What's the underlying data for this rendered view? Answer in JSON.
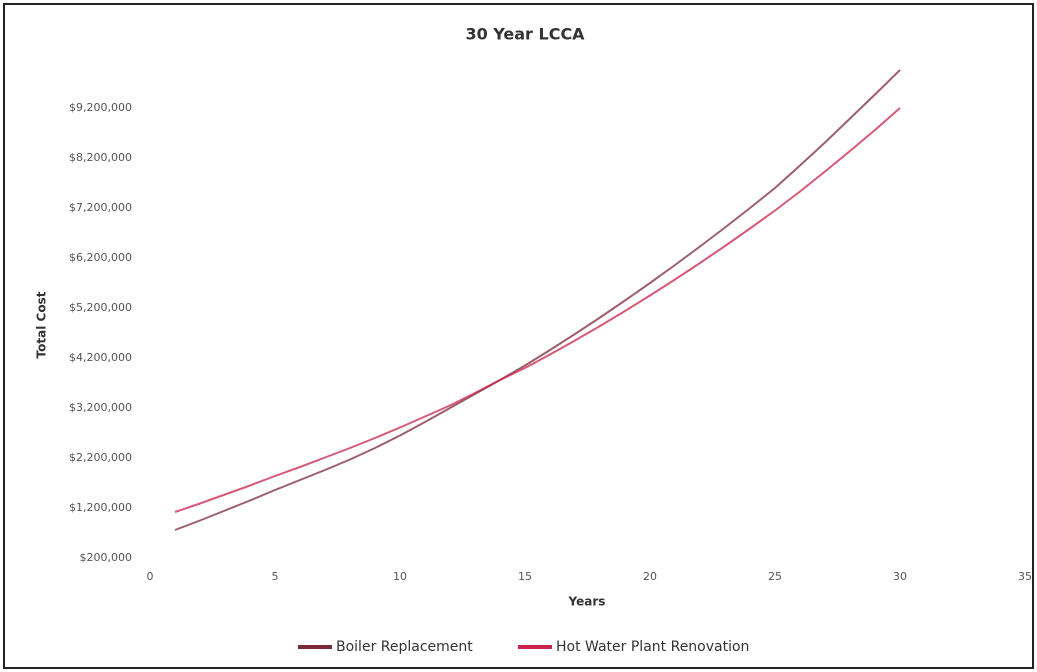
{
  "chart_data": {
    "type": "line",
    "title": "30 Year LCCA",
    "x_label": "Years",
    "y_label": "Total Cost",
    "x": [
      1,
      2,
      3,
      4,
      5,
      6,
      7,
      8,
      9,
      10,
      11,
      12,
      13,
      14,
      15,
      16,
      17,
      18,
      19,
      20,
      21,
      22,
      23,
      24,
      25,
      26,
      27,
      28,
      29,
      30
    ],
    "series": [
      {
        "name": "Boiler Replacement",
        "color": "#7b2a3a",
        "values": [
          760000,
          950000,
          1150000,
          1350000,
          1560000,
          1760000,
          1960000,
          2170000,
          2400000,
          2650000,
          2920000,
          3200000,
          3480000,
          3760000,
          4050000,
          4360000,
          4680000,
          5010000,
          5350000,
          5700000,
          6060000,
          6430000,
          6810000,
          7200000,
          7600000,
          8050000,
          8510000,
          8990000,
          9470000,
          9960000
        ]
      },
      {
        "name": "Hot Water Plant Renovation",
        "color": "#c8234a",
        "values": [
          1120000,
          1290000,
          1470000,
          1650000,
          1840000,
          2020000,
          2210000,
          2400000,
          2600000,
          2810000,
          3030000,
          3250000,
          3500000,
          3760000,
          4000000,
          4270000,
          4550000,
          4840000,
          5140000,
          5450000,
          5770000,
          6100000,
          6440000,
          6790000,
          7150000,
          7530000,
          7930000,
          8340000,
          8760000,
          9200000
        ]
      }
    ],
    "xlim": [
      0,
      35
    ],
    "xticks": [
      0,
      5,
      10,
      15,
      20,
      25,
      30,
      35
    ],
    "ylim": [
      200000,
      10200000
    ],
    "yticks": [
      {
        "value": 200000,
        "label": "$200,000"
      },
      {
        "value": 1200000,
        "label": "$1,200,000"
      },
      {
        "value": 2200000,
        "label": "$2,200,000"
      },
      {
        "value": 3200000,
        "label": "$3,200,000"
      },
      {
        "value": 4200000,
        "label": "$4,200,000"
      },
      {
        "value": 5200000,
        "label": "$5,200,000"
      },
      {
        "value": 6200000,
        "label": "$6,200,000"
      },
      {
        "value": 7200000,
        "label": "$7,200,000"
      },
      {
        "value": 8200000,
        "label": "$8,200,000"
      },
      {
        "value": 9200000,
        "label": "$9,200,000"
      }
    ],
    "grid": false,
    "legend": "bottom"
  }
}
